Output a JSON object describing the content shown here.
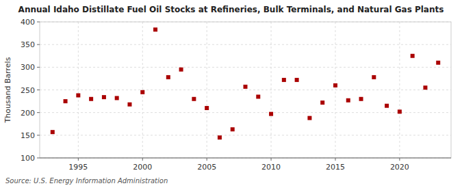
{
  "chart_data": {
    "type": "scatter",
    "title": "Annual Idaho Distillate Fuel Oil Stocks at Refineries, Bulk Terminals, and Natural Gas Plants",
    "ylabel": "Thousand Barrels",
    "annotations": [
      "Source: U.S. Energy Information Administration"
    ],
    "x": [
      1993,
      1994,
      1995,
      1996,
      1997,
      1998,
      1999,
      2000,
      2001,
      2002,
      2003,
      2004,
      2005,
      2006,
      2007,
      2008,
      2009,
      2010,
      2011,
      2012,
      2013,
      2014,
      2015,
      2016,
      2017,
      2018,
      2019,
      2020,
      2021,
      2022,
      2023
    ],
    "values": [
      157,
      225,
      238,
      230,
      234,
      232,
      218,
      245,
      383,
      278,
      295,
      230,
      210,
      145,
      163,
      257,
      235,
      197,
      272,
      272,
      188,
      222,
      260,
      227,
      230,
      278,
      215,
      202,
      325,
      255,
      310
    ],
    "color": "#aa0000",
    "marker": "square",
    "xlim": [
      1992,
      2024
    ],
    "ylim": [
      100,
      400
    ],
    "xticks": [
      1995,
      2000,
      2005,
      2010,
      2015,
      2020
    ],
    "yticks": [
      100,
      150,
      200,
      250,
      300,
      350,
      400
    ],
    "grid": true
  }
}
